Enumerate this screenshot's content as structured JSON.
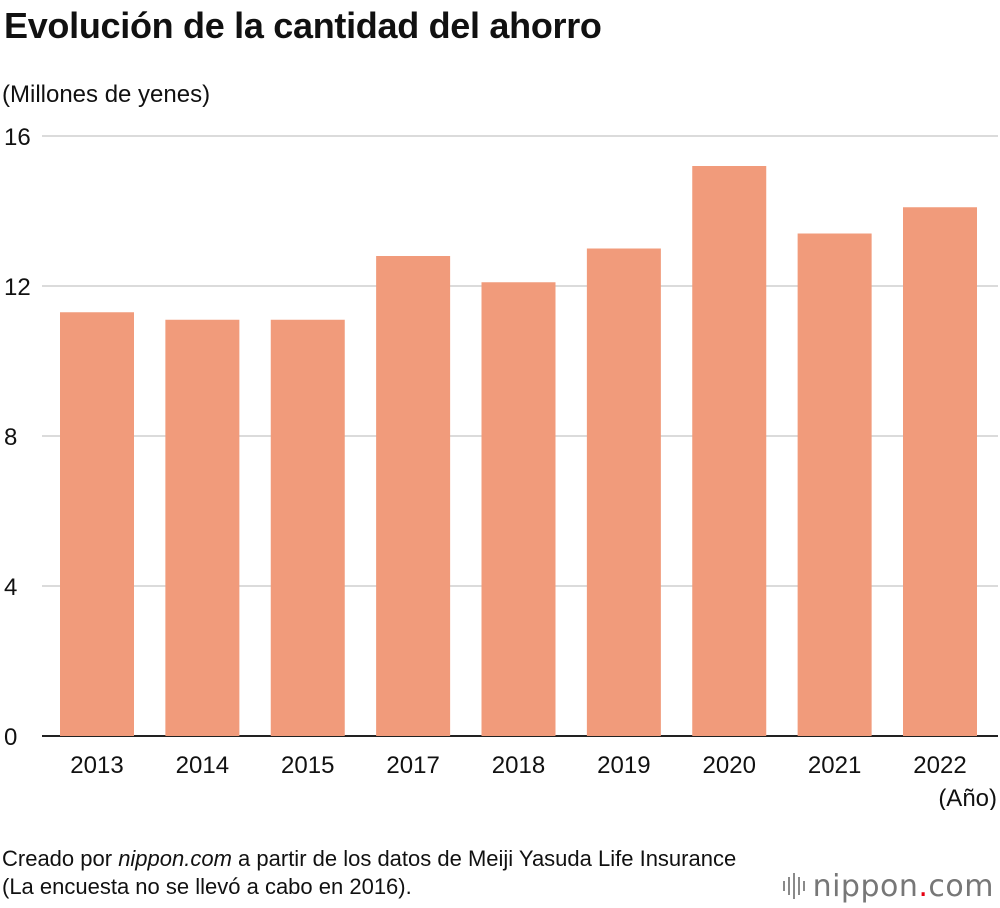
{
  "header": {
    "title": "Evolución de la cantidad del ahorro",
    "unit": "(Millones de yenes)"
  },
  "chart_data": {
    "type": "bar",
    "title": "Evolución de la cantidad del ahorro",
    "ylabel": "(Millones de yenes)",
    "xlabel": "(Año)",
    "categories": [
      "2013",
      "2014",
      "2015",
      "2017",
      "2018",
      "2019",
      "2020",
      "2021",
      "2022"
    ],
    "values": [
      11.3,
      11.1,
      11.1,
      12.8,
      12.1,
      13.0,
      15.2,
      13.4,
      14.1
    ],
    "ylim": [
      0,
      16
    ],
    "yticks": [
      0,
      4,
      8,
      12,
      16
    ],
    "grid": true,
    "bar_color": "#f19b7b",
    "grid_color": "#cfcfcf"
  },
  "footnote": {
    "prefix": "Creado por ",
    "source_site": "nippon.com",
    "suffix": " a partir de los datos de Meiji Yasuda Life Insurance (La encuesta no se llevó a cabo en 2016)."
  },
  "logo": {
    "name": "nippon",
    "dot": ".",
    "tld": "com",
    "accent_color": "#e60012",
    "icon": "nippon-logo-icon"
  }
}
